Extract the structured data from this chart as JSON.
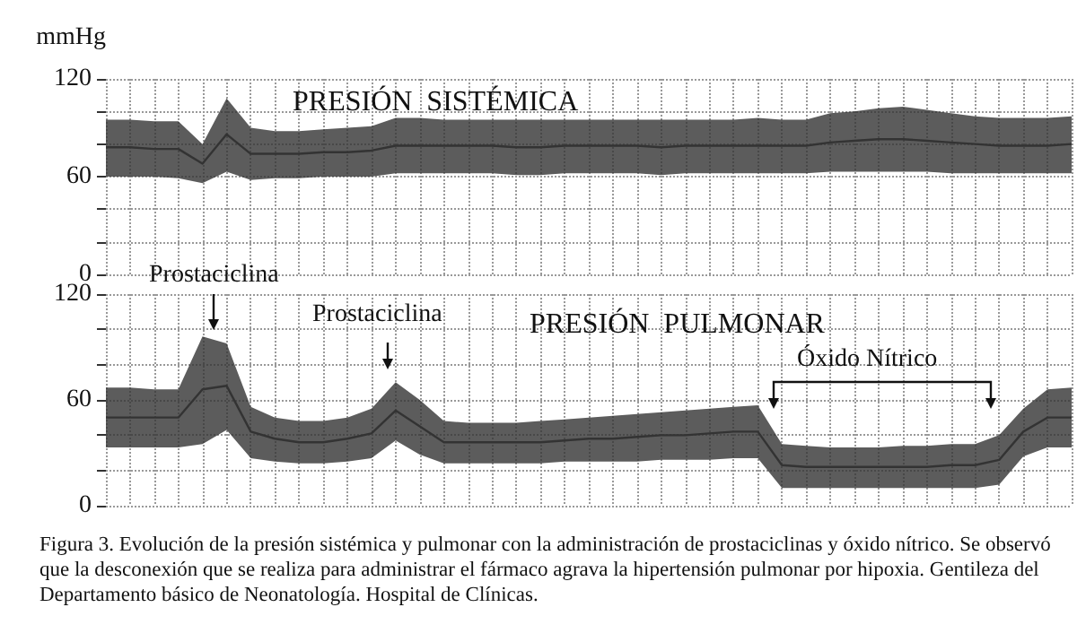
{
  "chart_data": [
    {
      "type": "line",
      "title": "PRESIÓN  SISTÉMICA",
      "ylabel": "mmHg",
      "categories": [
        null,
        null,
        null,
        null,
        null,
        null,
        null,
        null,
        null,
        null,
        null,
        null,
        null,
        null,
        null,
        null,
        null,
        null,
        null,
        null,
        null,
        null,
        null,
        null,
        null,
        null,
        null,
        null,
        null,
        null,
        null,
        null,
        null,
        null,
        null,
        null,
        null,
        null,
        null,
        null,
        null
      ],
      "series": [
        {
          "color": "#333333",
          "values": [
            78,
            78,
            77,
            77,
            68,
            86,
            74,
            74,
            74,
            75,
            75,
            76,
            79,
            79,
            79,
            79,
            79,
            78,
            78,
            79,
            79,
            79,
            79,
            78,
            79,
            79,
            79,
            79,
            79,
            79,
            81,
            82,
            83,
            83,
            82,
            81,
            80,
            79,
            79,
            79,
            80
          ],
          "upper": [
            95,
            95,
            94,
            94,
            80,
            108,
            90,
            88,
            88,
            89,
            90,
            91,
            96,
            96,
            95,
            95,
            95,
            95,
            95,
            95,
            95,
            95,
            95,
            95,
            95,
            95,
            95,
            96,
            95,
            95,
            99,
            100,
            102,
            103,
            101,
            99,
            97,
            96,
            96,
            96,
            97
          ],
          "lower": [
            60,
            60,
            60,
            59,
            56,
            63,
            58,
            59,
            59,
            60,
            60,
            60,
            62,
            62,
            62,
            62,
            62,
            61,
            61,
            62,
            62,
            62,
            62,
            61,
            62,
            62,
            62,
            62,
            62,
            62,
            63,
            63,
            63,
            63,
            63,
            62,
            62,
            62,
            62,
            62,
            62
          ]
        }
      ],
      "ylim": [
        0,
        120
      ],
      "yticks": [
        0,
        {
          "value": 20,
          "label": null
        },
        {
          "value": 40,
          "label": null
        },
        60,
        {
          "value": 80,
          "label": null
        },
        {
          "value": 100,
          "label": null
        },
        120
      ],
      "grid": true
    },
    {
      "type": "line",
      "title": "PRESIÓN  PULMONAR",
      "categories": [
        null,
        null,
        null,
        null,
        null,
        null,
        null,
        null,
        null,
        null,
        null,
        null,
        null,
        null,
        null,
        null,
        null,
        null,
        null,
        null,
        null,
        null,
        null,
        null,
        null,
        null,
        null,
        null,
        null,
        null,
        null,
        null,
        null,
        null,
        null,
        null,
        null,
        null,
        null,
        null,
        null
      ],
      "series": [
        {
          "color": "#333333",
          "values": [
            50,
            50,
            50,
            50,
            66,
            68,
            42,
            38,
            36,
            36,
            38,
            41,
            54,
            45,
            36,
            36,
            36,
            36,
            36,
            37,
            38,
            38,
            39,
            40,
            40,
            41,
            42,
            42,
            23,
            22,
            22,
            22,
            22,
            22,
            22,
            23,
            23,
            26,
            42,
            50,
            50
          ],
          "upper": [
            67,
            67,
            66,
            66,
            96,
            92,
            56,
            50,
            48,
            48,
            50,
            55,
            70,
            60,
            48,
            47,
            47,
            47,
            48,
            49,
            50,
            51,
            52,
            53,
            54,
            55,
            56,
            57,
            35,
            34,
            33,
            33,
            33,
            34,
            34,
            35,
            35,
            40,
            55,
            66,
            67
          ],
          "lower": [
            33,
            33,
            33,
            33,
            35,
            43,
            27,
            25,
            24,
            24,
            25,
            27,
            37,
            29,
            24,
            24,
            24,
            24,
            24,
            25,
            25,
            25,
            25,
            26,
            26,
            26,
            27,
            27,
            10,
            10,
            10,
            10,
            10,
            10,
            10,
            10,
            10,
            12,
            28,
            33,
            33
          ]
        }
      ],
      "ylim": [
        0,
        120
      ],
      "yticks": [
        0,
        {
          "value": 20,
          "label": null
        },
        {
          "value": 40,
          "label": null
        },
        60,
        {
          "value": 80,
          "label": null
        },
        {
          "value": 100,
          "label": null
        },
        120
      ],
      "grid": true,
      "annotations": [
        "Prostaciclina",
        "Prostaciclina",
        "Óxido Nítrico",
        "Figura 3. Evolución de la presión sistémica y pulmonar con la administración de prostaciclinas y óxido nítrico. Se observó que la desconexión que se realiza para administrar el fármaco agrava la hipertensión pulmonar por hipoxia. Gentileza del Departamento básico de Neonatología. Hospital de Clínicas."
      ]
    }
  ]
}
